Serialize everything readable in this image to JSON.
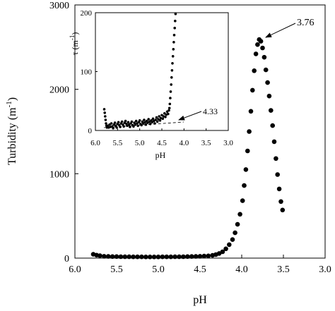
{
  "chart_data": [
    {
      "type": "scatter",
      "title": "",
      "xlabel": "pH",
      "ylabel": "Turbidity (m-1)",
      "ylabel_parts": {
        "base": "Turbidity (m",
        "sup": "-1",
        "close": ")"
      },
      "xlim": [
        6.0,
        3.0
      ],
      "ylim": [
        0,
        3000
      ],
      "x_reversed": true,
      "grid": false,
      "x_ticks": [
        "6.0",
        "5.5",
        "5.0",
        "4.5",
        "4.0",
        "3.5",
        "3.0"
      ],
      "x_tick_values": [
        6.0,
        5.5,
        5.0,
        4.5,
        4.0,
        3.5,
        3.0
      ],
      "y_ticks": [
        "0",
        "1000",
        "2000",
        "3000"
      ],
      "y_tick_values": [
        0,
        1000,
        2000,
        3000
      ],
      "marker_color": "#000000",
      "annotation": {
        "text": "3.76",
        "x": 3.78,
        "y": 2600
      },
      "series": [
        {
          "name": "",
          "points": [
            [
              5.78,
              45
            ],
            [
              5.74,
              35
            ],
            [
              5.7,
              28
            ],
            [
              5.65,
              22
            ],
            [
              5.6,
              20
            ],
            [
              5.55,
              18
            ],
            [
              5.5,
              18
            ],
            [
              5.45,
              17
            ],
            [
              5.4,
              16
            ],
            [
              5.35,
              16
            ],
            [
              5.3,
              15
            ],
            [
              5.25,
              15
            ],
            [
              5.2,
              15
            ],
            [
              5.15,
              14
            ],
            [
              5.1,
              14
            ],
            [
              5.05,
              14
            ],
            [
              5.0,
              14
            ],
            [
              4.95,
              15
            ],
            [
              4.9,
              15
            ],
            [
              4.85,
              15
            ],
            [
              4.8,
              16
            ],
            [
              4.75,
              16
            ],
            [
              4.7,
              17
            ],
            [
              4.65,
              18
            ],
            [
              4.6,
              19
            ],
            [
              4.55,
              20
            ],
            [
              4.5,
              22
            ],
            [
              4.45,
              24
            ],
            [
              4.4,
              27
            ],
            [
              4.35,
              33
            ],
            [
              4.31,
              42
            ],
            [
              4.27,
              55
            ],
            [
              4.23,
              75
            ],
            [
              4.19,
              110
            ],
            [
              4.15,
              160
            ],
            [
              4.11,
              220
            ],
            [
              4.08,
              300
            ],
            [
              4.05,
              400
            ],
            [
              4.02,
              520
            ],
            [
              3.99,
              680
            ],
            [
              3.97,
              860
            ],
            [
              3.95,
              1050
            ],
            [
              3.93,
              1270
            ],
            [
              3.91,
              1500
            ],
            [
              3.89,
              1740
            ],
            [
              3.87,
              1990
            ],
            [
              3.85,
              2220
            ],
            [
              3.83,
              2420
            ],
            [
              3.81,
              2530
            ],
            [
              3.79,
              2590
            ],
            [
              3.77,
              2570
            ],
            [
              3.75,
              2490
            ],
            [
              3.73,
              2380
            ],
            [
              3.71,
              2230
            ],
            [
              3.69,
              2080
            ],
            [
              3.67,
              1920
            ],
            [
              3.65,
              1750
            ],
            [
              3.63,
              1570
            ],
            [
              3.61,
              1380
            ],
            [
              3.59,
              1180
            ],
            [
              3.57,
              990
            ],
            [
              3.55,
              820
            ],
            [
              3.53,
              670
            ],
            [
              3.51,
              570
            ]
          ]
        }
      ]
    },
    {
      "type": "scatter",
      "title": "",
      "xlabel": "pH",
      "ylabel": "τ (m-1)",
      "ylabel_parts": {
        "base": "τ (m",
        "sup": "-1",
        "close": ")"
      },
      "xlim": [
        6.0,
        3.0
      ],
      "ylim": [
        0,
        200
      ],
      "x_reversed": true,
      "grid": false,
      "x_ticks": [
        "6.0",
        "5.5",
        "5.0",
        "4.5",
        "4.0",
        "3.5",
        "3.0"
      ],
      "x_tick_values": [
        6.0,
        5.5,
        5.0,
        4.5,
        4.0,
        3.5,
        3.0
      ],
      "y_ticks": [
        "0",
        "100",
        "200"
      ],
      "y_tick_values": [
        0,
        100,
        200
      ],
      "marker_color": "#000000",
      "annotation": {
        "text": "4.33",
        "x": 4.33,
        "y": 18
      },
      "series": [
        {
          "name": "",
          "points": [
            [
              5.8,
              36
            ],
            [
              5.79,
              30
            ],
            [
              5.78,
              24
            ],
            [
              5.77,
              18
            ],
            [
              5.76,
              12
            ],
            [
              5.75,
              8
            ],
            [
              5.74,
              5
            ],
            [
              5.72,
              8
            ],
            [
              5.7,
              5
            ],
            [
              5.68,
              10
            ],
            [
              5.66,
              6
            ],
            [
              5.64,
              12
            ],
            [
              5.62,
              7
            ],
            [
              5.6,
              4
            ],
            [
              5.58,
              10
            ],
            [
              5.56,
              13
            ],
            [
              5.54,
              8
            ],
            [
              5.52,
              5
            ],
            [
              5.5,
              11
            ],
            [
              5.48,
              14
            ],
            [
              5.46,
              9
            ],
            [
              5.44,
              6
            ],
            [
              5.42,
              12
            ],
            [
              5.4,
              15
            ],
            [
              5.38,
              10
            ],
            [
              5.36,
              7
            ],
            [
              5.34,
              13
            ],
            [
              5.32,
              16
            ],
            [
              5.3,
              11
            ],
            [
              5.28,
              8
            ],
            [
              5.26,
              14
            ],
            [
              5.24,
              10
            ],
            [
              5.22,
              6
            ],
            [
              5.2,
              12
            ],
            [
              5.18,
              15
            ],
            [
              5.16,
              9
            ],
            [
              5.14,
              7
            ],
            [
              5.12,
              13
            ],
            [
              5.1,
              10
            ],
            [
              5.08,
              16
            ],
            [
              5.06,
              12
            ],
            [
              5.04,
              8
            ],
            [
              5.02,
              14
            ],
            [
              5.0,
              17
            ],
            [
              4.98,
              11
            ],
            [
              4.96,
              9
            ],
            [
              4.94,
              15
            ],
            [
              4.92,
              12
            ],
            [
              4.9,
              18
            ],
            [
              4.88,
              14
            ],
            [
              4.86,
              10
            ],
            [
              4.84,
              16
            ],
            [
              4.82,
              13
            ],
            [
              4.8,
              19
            ],
            [
              4.78,
              15
            ],
            [
              4.76,
              11
            ],
            [
              4.74,
              17
            ],
            [
              4.72,
              14
            ],
            [
              4.7,
              20
            ],
            [
              4.68,
              16
            ],
            [
              4.66,
              12
            ],
            [
              4.64,
              18
            ],
            [
              4.62,
              22
            ],
            [
              4.6,
              15
            ],
            [
              4.58,
              19
            ],
            [
              4.56,
              24
            ],
            [
              4.54,
              17
            ],
            [
              4.52,
              21
            ],
            [
              4.5,
              26
            ],
            [
              4.48,
              20
            ],
            [
              4.46,
              24
            ],
            [
              4.44,
              29
            ],
            [
              4.42,
              23
            ],
            [
              4.4,
              27
            ],
            [
              4.38,
              32
            ],
            [
              4.36,
              28
            ],
            [
              4.34,
              34
            ],
            [
              4.33,
              38
            ],
            [
              4.32,
              45
            ],
            [
              4.31,
              55
            ],
            [
              4.3,
              66
            ],
            [
              4.29,
              78
            ],
            [
              4.28,
              90
            ],
            [
              4.27,
              102
            ],
            [
              4.26,
              114
            ],
            [
              4.25,
              126
            ],
            [
              4.24,
              138
            ],
            [
              4.23,
              150
            ],
            [
              4.22,
              162
            ],
            [
              4.21,
              174
            ],
            [
              4.2,
              186
            ],
            [
              4.19,
              198
            ]
          ]
        }
      ]
    }
  ]
}
